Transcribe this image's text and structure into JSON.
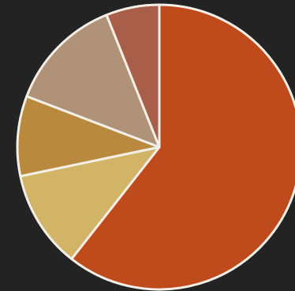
{
  "chart_data": {
    "type": "pie",
    "title": "",
    "slices": [
      {
        "value": 60,
        "color": "#bf4a1c"
      },
      {
        "value": 11,
        "color": "#d2b466"
      },
      {
        "value": 9,
        "color": "#b98a3e"
      },
      {
        "value": 13,
        "color": "#b09279"
      },
      {
        "value": 6,
        "color": "#a85e48"
      }
    ],
    "start_angle_deg": 0,
    "direction": "clockwise",
    "legend": "none",
    "slice_border_color": "#f4efe6",
    "background_color": "#232323"
  }
}
